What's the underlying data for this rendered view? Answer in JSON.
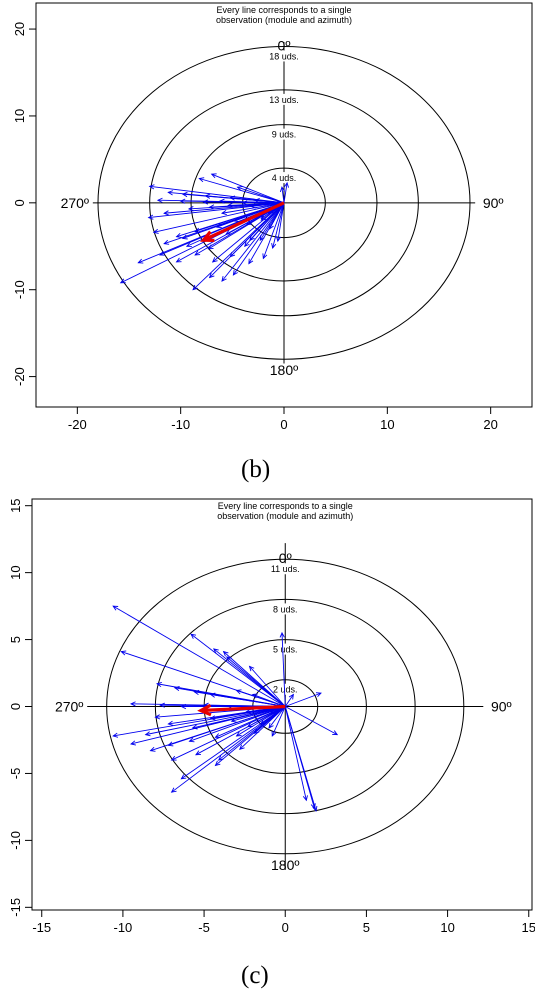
{
  "captions": {
    "b": "(b)",
    "c": "(c)"
  },
  "colors": {
    "observation": "#0000ee",
    "mean": "#e60000",
    "axis": "#000000"
  },
  "chart_data": [
    {
      "type": "scatter",
      "subtype": "polar-vector",
      "title_lines": [
        "Every line corresponds to a single",
        "observation (module and azimuth)"
      ],
      "xlim": [
        -24,
        24
      ],
      "ylim": [
        -23.5,
        23
      ],
      "xticks": [
        -20,
        -10,
        0,
        10,
        20
      ],
      "yticks": [
        -20,
        -10,
        0,
        10,
        20
      ],
      "circles": [
        4,
        9,
        13,
        18
      ],
      "circle_labels": [
        "4 uds.",
        "9 uds.",
        "13 uds.",
        "18 uds."
      ],
      "direction_labels": {
        "north": "0º",
        "east": "90º",
        "south": "180º",
        "west": "270º"
      },
      "axis_extent": 18.5,
      "mean_vector": [
        -7.8,
        -4.3
      ],
      "vectors": [
        [
          -13.0,
          1.9
        ],
        [
          -11.2,
          1.2
        ],
        [
          -9.8,
          1.0
        ],
        [
          -7.6,
          0.8
        ],
        [
          -5.2,
          0.6
        ],
        [
          -8.2,
          2.8
        ],
        [
          -7.0,
          3.3
        ],
        [
          -4.5,
          1.8
        ],
        [
          -12.2,
          0.3
        ],
        [
          -10.0,
          0.2
        ],
        [
          -7.8,
          0.1
        ],
        [
          -6.2,
          0.2
        ],
        [
          -4.0,
          0.0
        ],
        [
          -2.8,
          0.3
        ],
        [
          -13.1,
          -1.7
        ],
        [
          -11.6,
          -1.2
        ],
        [
          -9.2,
          -0.7
        ],
        [
          -7.2,
          -0.5
        ],
        [
          -5.4,
          -0.3
        ],
        [
          -3.2,
          -0.4
        ],
        [
          -12.6,
          -3.4
        ],
        [
          -10.4,
          -3.9
        ],
        [
          -8.6,
          -3.3
        ],
        [
          -6.5,
          -2.8
        ],
        [
          -4.8,
          -2.1
        ],
        [
          -11.6,
          -4.7
        ],
        [
          -9.4,
          -5.0
        ],
        [
          -7.3,
          -5.3
        ],
        [
          -5.6,
          -3.6
        ],
        [
          -3.6,
          -2.5
        ],
        [
          -15.8,
          -9.2
        ],
        [
          -14.1,
          -6.9
        ],
        [
          -12.0,
          -6.0
        ],
        [
          -10.4,
          -6.8
        ],
        [
          -8.6,
          -6.0
        ],
        [
          -6.9,
          -6.8
        ],
        [
          -5.2,
          -6.2
        ],
        [
          -3.8,
          -5.0
        ],
        [
          -2.3,
          -4.3
        ],
        [
          -1.4,
          -3.0
        ],
        [
          -8.8,
          -10.0
        ],
        [
          -7.2,
          -8.6
        ],
        [
          -6.0,
          -9.0
        ],
        [
          -4.9,
          -8.3
        ],
        [
          -3.4,
          -7.0
        ],
        [
          -2.0,
          -6.4
        ],
        [
          -1.1,
          -5.2
        ],
        [
          -0.6,
          -4.4
        ],
        [
          0.3,
          2.3
        ],
        [
          -0.2,
          1.8
        ],
        [
          -1.5,
          -1.2
        ],
        [
          -2.2,
          -2.0
        ],
        [
          -9.8,
          -4.1
        ],
        [
          -6.0,
          -1.2
        ],
        [
          -2.2,
          -1.8
        ],
        [
          -3.3,
          -4.3
        ]
      ]
    },
    {
      "type": "scatter",
      "subtype": "polar-vector",
      "title_lines": [
        "Every line corresponds to a single",
        "observation (module and azimuth)"
      ],
      "xlim": [
        -15.6,
        15.2
      ],
      "ylim": [
        -15.2,
        15.5
      ],
      "xticks": [
        -15,
        -10,
        -5,
        0,
        5,
        10,
        15
      ],
      "yticks": [
        -15,
        -10,
        -5,
        0,
        5,
        10,
        15
      ],
      "circles": [
        2,
        5,
        8,
        11
      ],
      "circle_labels": [
        "2 uds.",
        "5 uds.",
        "8 uds.",
        "11 uds."
      ],
      "direction_labels": {
        "north": "0º",
        "east": "90º",
        "south": "180º",
        "west": "270º"
      },
      "axis_extent": 12.2,
      "mean_vector": [
        -5.2,
        -0.3
      ],
      "vectors": [
        [
          -10.6,
          7.5
        ],
        [
          -10.1,
          4.1
        ],
        [
          -5.8,
          5.4
        ],
        [
          -4.4,
          4.3
        ],
        [
          -3.8,
          4.1
        ],
        [
          -3.6,
          3.7
        ],
        [
          -2.2,
          3.0
        ],
        [
          -0.2,
          5.5
        ],
        [
          -7.9,
          1.7
        ],
        [
          -6.8,
          1.4
        ],
        [
          -5.6,
          1.1
        ],
        [
          -4.6,
          0.9
        ],
        [
          -3.0,
          1.2
        ],
        [
          -2.0,
          0.9
        ],
        [
          -9.5,
          0.2
        ],
        [
          -7.7,
          0.1
        ],
        [
          -6.4,
          0.0
        ],
        [
          -5.0,
          0.1
        ],
        [
          -3.6,
          -0.2
        ],
        [
          -2.4,
          -0.4
        ],
        [
          -8.0,
          -0.8
        ],
        [
          -7.2,
          -1.3
        ],
        [
          -5.7,
          -1.6
        ],
        [
          -4.6,
          -0.9
        ],
        [
          -3.3,
          -1.1
        ],
        [
          -10.6,
          -2.2
        ],
        [
          -9.5,
          -2.8
        ],
        [
          -8.6,
          -2.1
        ],
        [
          -7.2,
          -2.9
        ],
        [
          -5.9,
          -2.6
        ],
        [
          -4.3,
          -2.3
        ],
        [
          -3.0,
          -2.2
        ],
        [
          -8.3,
          -3.3
        ],
        [
          -7.0,
          -4.0
        ],
        [
          -5.5,
          -3.6
        ],
        [
          -4.1,
          -4.0
        ],
        [
          -2.8,
          -3.2
        ],
        [
          -6.4,
          -5.4
        ],
        [
          -4.3,
          -4.4
        ],
        [
          -7.0,
          -6.4
        ],
        [
          -2.3,
          -1.5
        ],
        [
          -1.5,
          -1.3
        ],
        [
          -1.0,
          -1.6
        ],
        [
          -0.8,
          -2.2
        ],
        [
          1.9,
          -7.8
        ],
        [
          1.3,
          -7.0
        ],
        [
          1.8,
          -7.6
        ],
        [
          3.2,
          -2.1
        ],
        [
          2.2,
          1.0
        ],
        [
          0.5,
          0.9
        ],
        [
          -0.9,
          -0.5
        ],
        [
          -1.9,
          -2.0
        ]
      ]
    }
  ]
}
